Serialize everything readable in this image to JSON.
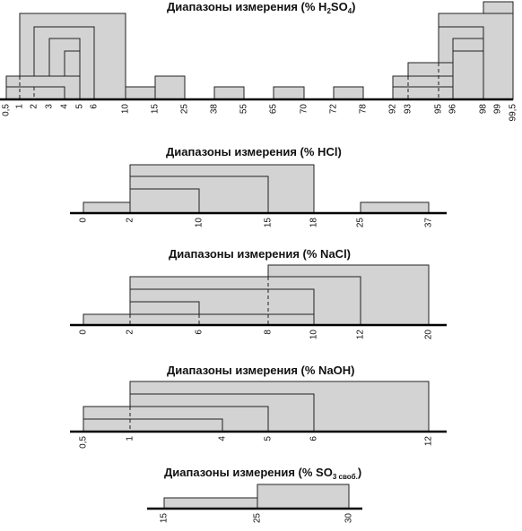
{
  "charts": [
    {
      "id": "h2so4",
      "title": "Диапазоны измерения (% H",
      "title_sub": "2",
      "title_mid": "SO",
      "title_sub2": "4",
      "title_end": ")",
      "ticks": [
        "0,5",
        "1",
        "2",
        "3",
        "4",
        "5",
        "6",
        "10",
        "15",
        "25",
        "38",
        "55",
        "65",
        "70",
        "72",
        "78",
        "92",
        "93",
        "95",
        "96",
        "98",
        "99",
        "99,5"
      ]
    },
    {
      "id": "hcl",
      "title": "Диапазоны измерения (% HCl)",
      "ticks": [
        "0",
        "2",
        "10",
        "15",
        "18",
        "25",
        "37"
      ]
    },
    {
      "id": "nacl",
      "title": "Диапазоны измерения (% NaCl)",
      "ticks": [
        "0",
        "2",
        "6",
        "8",
        "10",
        "12",
        "20"
      ]
    },
    {
      "id": "naoh",
      "title": "Диапазоны измерения (% NaOH)",
      "ticks": [
        "0,5",
        "1",
        "4",
        "5",
        "6",
        "12"
      ]
    },
    {
      "id": "so3",
      "title": "Диапазоны измерения (% SO",
      "title_sub": "3 своб.",
      "title_end": ")",
      "ticks": [
        "15",
        "25",
        "30"
      ]
    }
  ],
  "colors": {
    "fill": "#d3d3d3",
    "stroke": "#222222",
    "axis": "#000000"
  }
}
